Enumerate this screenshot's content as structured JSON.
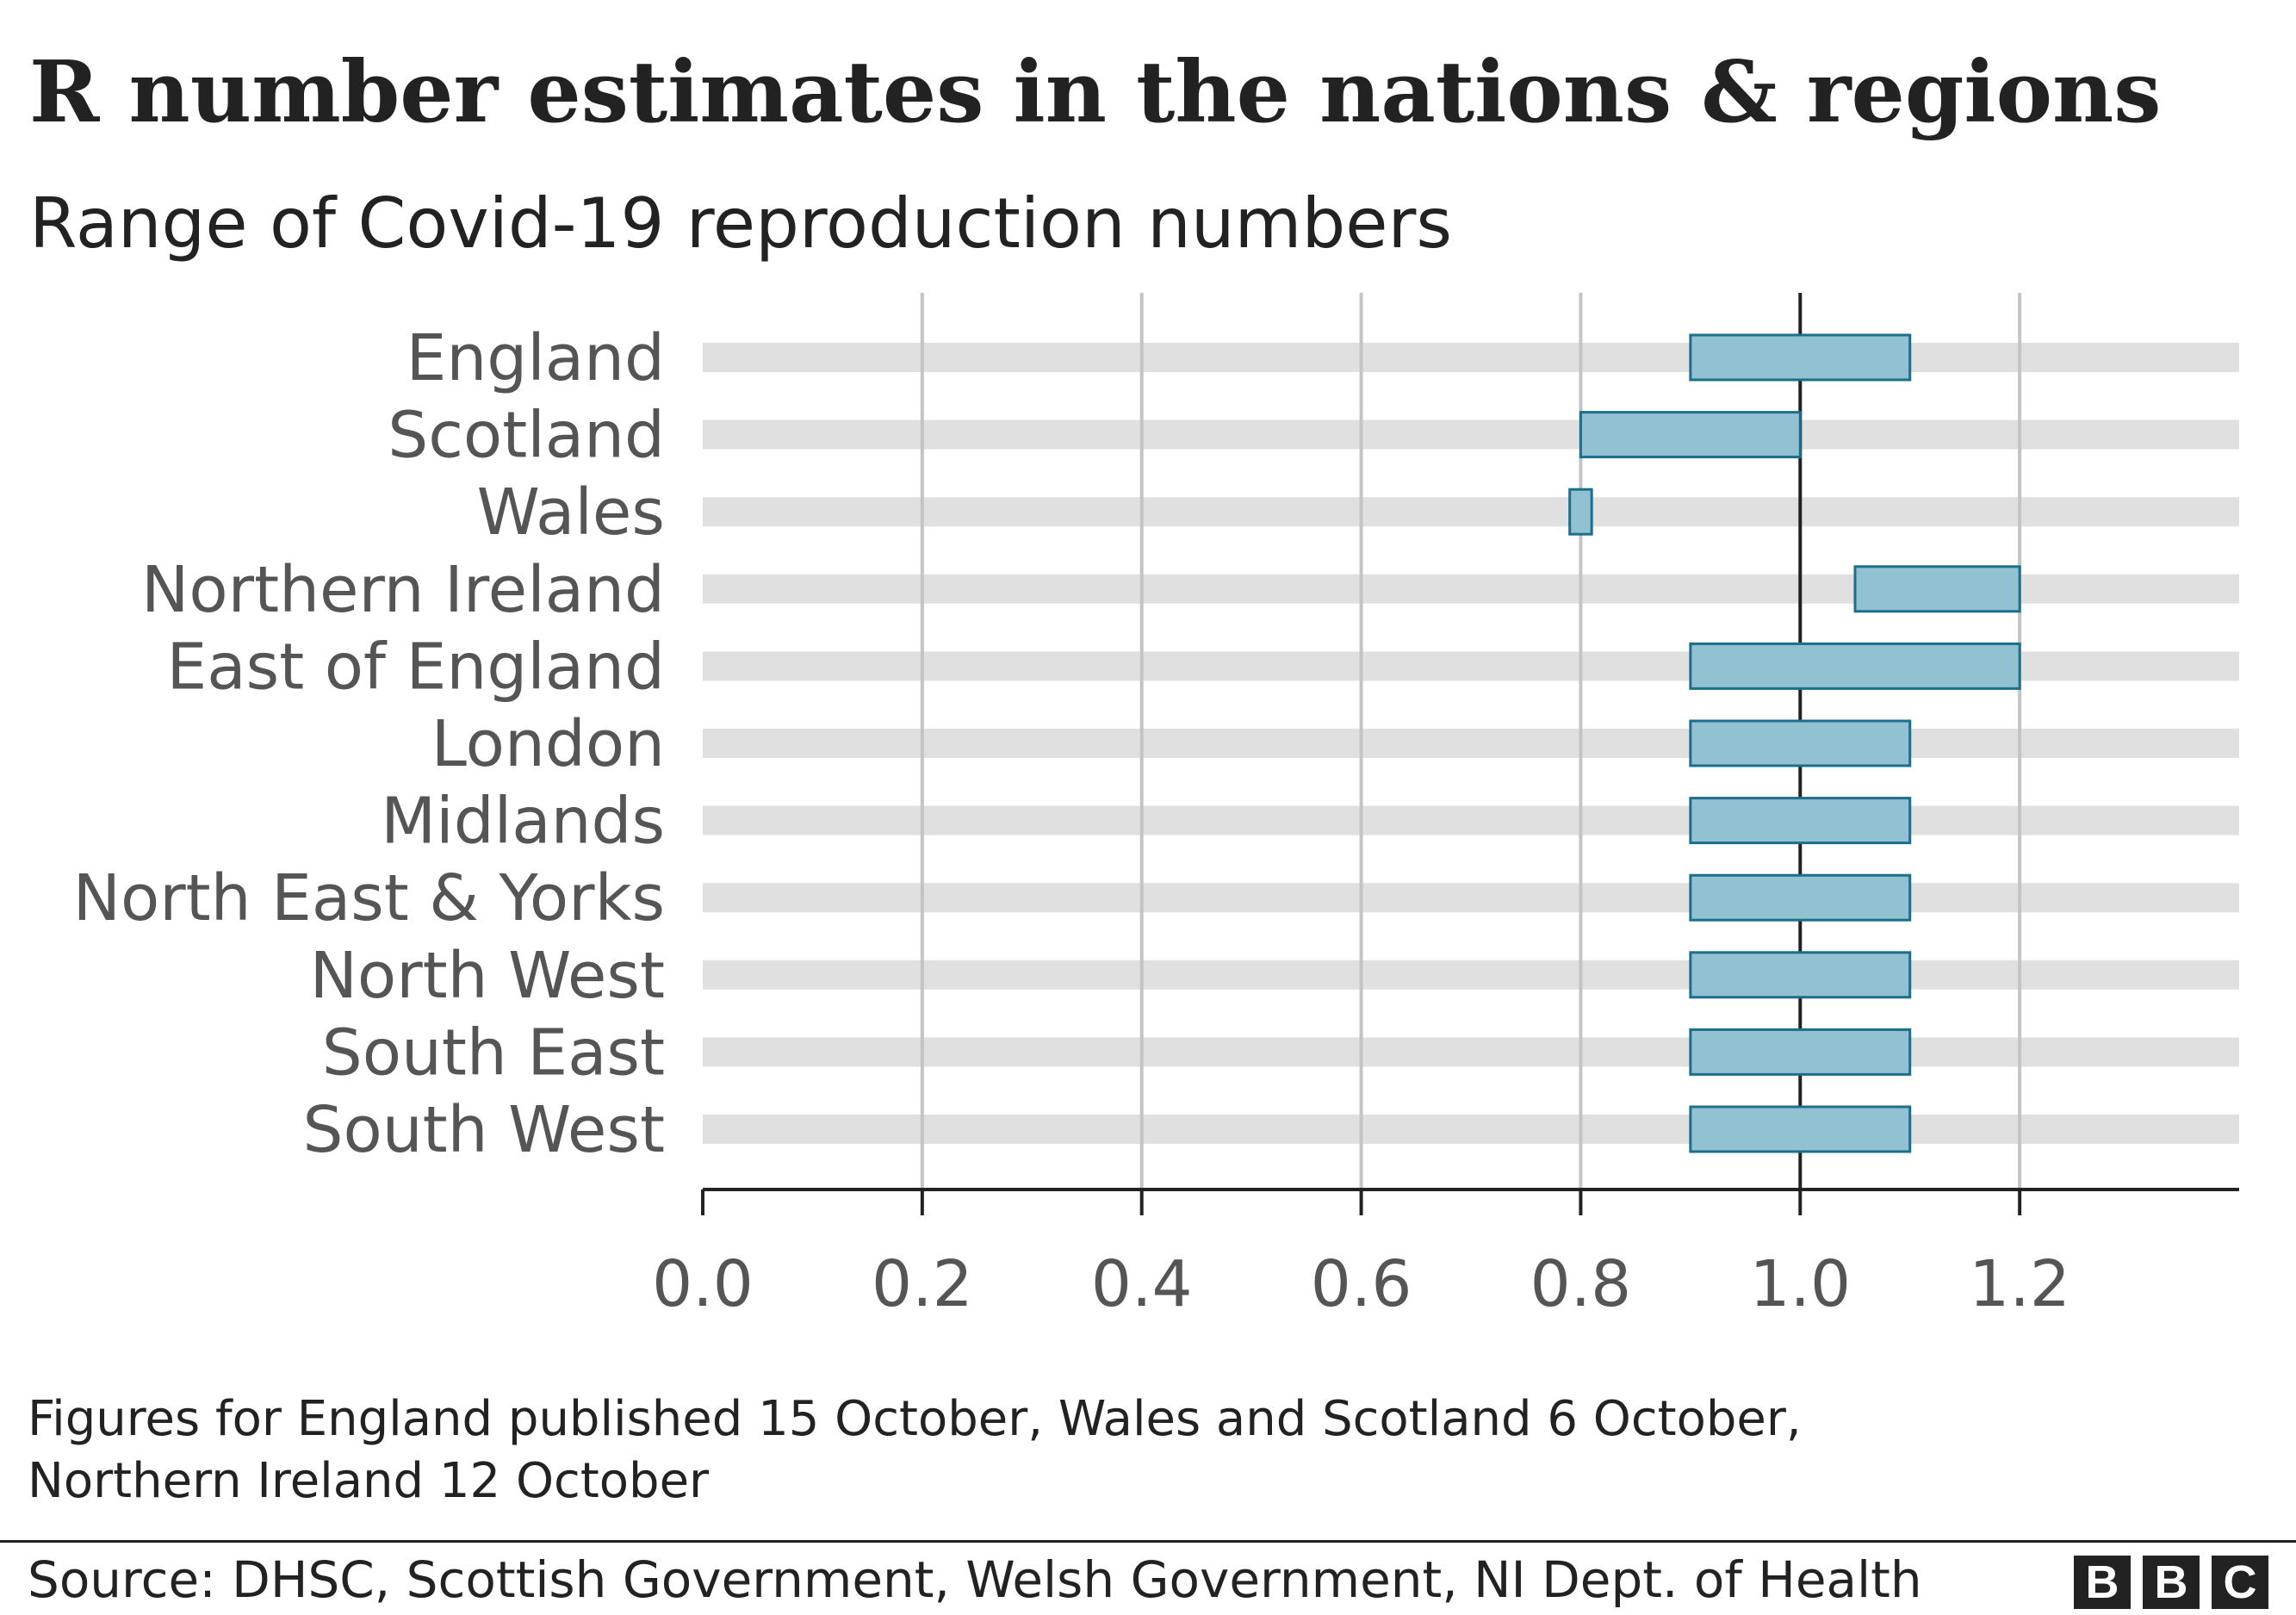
{
  "chart_data": {
    "type": "range-bar",
    "title": "R number estimates in the nations & regions",
    "subtitle": "Range of Covid-19 reproduction numbers",
    "categories": [
      "England",
      "Scotland",
      "Wales",
      "Northern Ireland",
      "East of England",
      "London",
      "Midlands",
      "North East & Yorks",
      "North West",
      "South East",
      "South West"
    ],
    "ranges": [
      {
        "low": 0.9,
        "high": 1.1
      },
      {
        "low": 0.8,
        "high": 1.0
      },
      {
        "low": 0.79,
        "high": 0.81
      },
      {
        "low": 1.05,
        "high": 1.2
      },
      {
        "low": 0.9,
        "high": 1.2
      },
      {
        "low": 0.9,
        "high": 1.1
      },
      {
        "low": 0.9,
        "high": 1.1
      },
      {
        "low": 0.9,
        "high": 1.1
      },
      {
        "low": 0.9,
        "high": 1.1
      },
      {
        "low": 0.9,
        "high": 1.1
      },
      {
        "low": 0.9,
        "high": 1.1
      }
    ],
    "xlim": [
      0,
      1.4
    ],
    "xticks": [
      0.0,
      0.2,
      0.4,
      0.6,
      0.8,
      1.0,
      1.2
    ],
    "xtick_labels": [
      "0.0",
      "0.2",
      "0.4",
      "0.6",
      "0.8",
      "1.0",
      "1.2"
    ],
    "reference_line": 1.0,
    "xlabel": "",
    "ylabel": "",
    "grid": true
  },
  "footnote": {
    "line1": "Figures for England published 15 October, Wales and Scotland 6 October,",
    "line2": "Northern Ireland 12 October"
  },
  "source": "Source: DHSC, Scottish Government, Welsh Government, NI Dept. of Health",
  "logo": [
    "B",
    "B",
    "C"
  ],
  "colors": {
    "bar_fill": "#92c1d2",
    "bar_stroke": "#1b6e8c",
    "band": "#e0e0e0",
    "gridline": "#c4c4c4",
    "axis": "#222222",
    "label": "#555555",
    "text": "#222222"
  }
}
